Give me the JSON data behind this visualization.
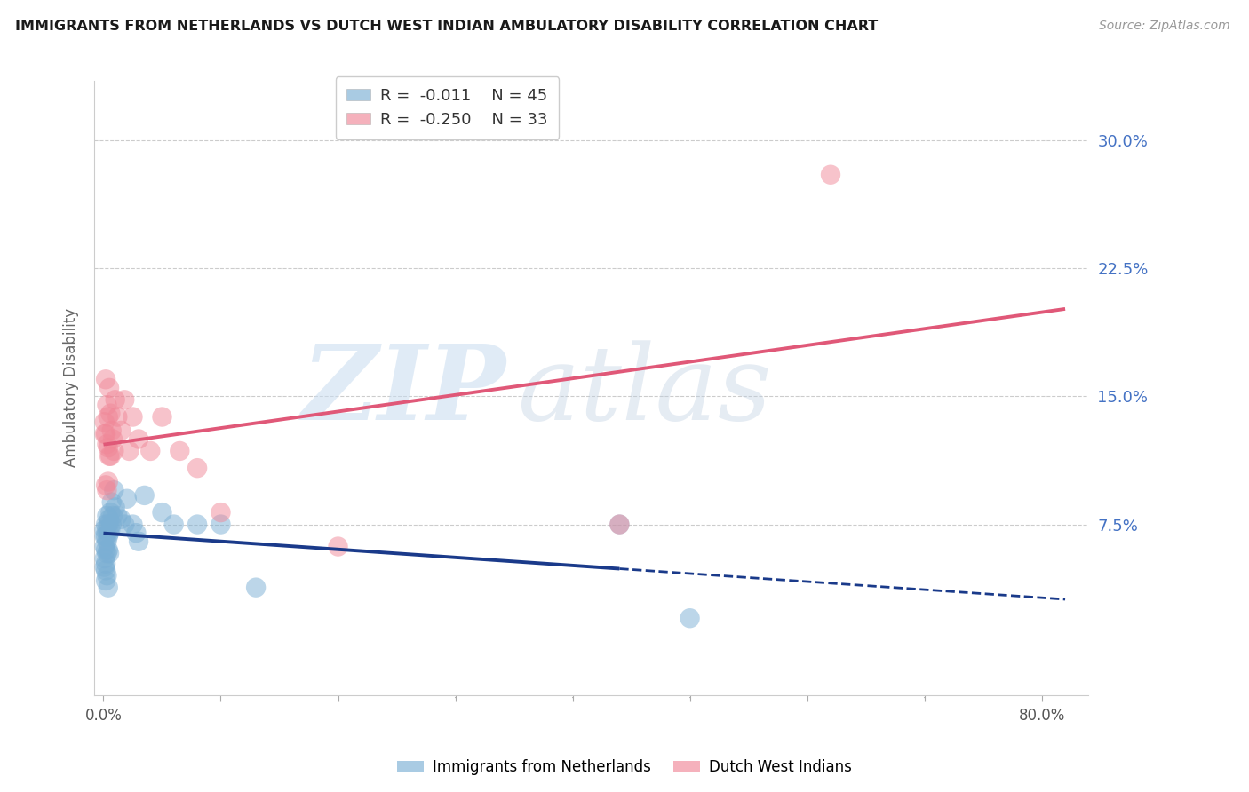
{
  "title": "IMMIGRANTS FROM NETHERLANDS VS DUTCH WEST INDIAN AMBULATORY DISABILITY CORRELATION CHART",
  "source": "Source: ZipAtlas.com",
  "ylabel": "Ambulatory Disability",
  "blue_color": "#7bafd4",
  "pink_color": "#f08898",
  "trend_blue": "#1a3a8a",
  "trend_pink": "#e05878",
  "ytick_vals": [
    0.075,
    0.15,
    0.225,
    0.3
  ],
  "ytick_labels": [
    "7.5%",
    "15.0%",
    "22.5%",
    "30.0%"
  ],
  "xlim": [
    -0.008,
    0.84
  ],
  "ylim": [
    -0.025,
    0.335
  ],
  "R_blue": -0.011,
  "N_blue": 45,
  "R_pink": -0.25,
  "N_pink": 33,
  "blue_x": [
    0.001,
    0.001,
    0.001,
    0.001,
    0.001,
    0.002,
    0.002,
    0.002,
    0.002,
    0.002,
    0.002,
    0.003,
    0.003,
    0.003,
    0.003,
    0.003,
    0.004,
    0.004,
    0.004,
    0.004,
    0.005,
    0.005,
    0.005,
    0.006,
    0.006,
    0.007,
    0.007,
    0.008,
    0.009,
    0.01,
    0.012,
    0.015,
    0.018,
    0.02,
    0.025,
    0.028,
    0.03,
    0.035,
    0.05,
    0.06,
    0.08,
    0.1,
    0.13,
    0.44,
    0.5
  ],
  "blue_y": [
    0.072,
    0.068,
    0.062,
    0.055,
    0.05,
    0.075,
    0.068,
    0.06,
    0.052,
    0.048,
    0.042,
    0.08,
    0.072,
    0.065,
    0.058,
    0.045,
    0.075,
    0.068,
    0.06,
    0.038,
    0.078,
    0.07,
    0.058,
    0.082,
    0.072,
    0.088,
    0.075,
    0.08,
    0.095,
    0.085,
    0.08,
    0.078,
    0.075,
    0.09,
    0.075,
    0.07,
    0.065,
    0.092,
    0.082,
    0.075,
    0.075,
    0.075,
    0.038,
    0.075,
    0.02
  ],
  "pink_x": [
    0.001,
    0.001,
    0.002,
    0.002,
    0.002,
    0.003,
    0.003,
    0.003,
    0.004,
    0.004,
    0.004,
    0.005,
    0.005,
    0.006,
    0.006,
    0.007,
    0.008,
    0.009,
    0.01,
    0.012,
    0.015,
    0.018,
    0.022,
    0.025,
    0.03,
    0.04,
    0.05,
    0.065,
    0.08,
    0.1,
    0.2,
    0.44,
    0.62
  ],
  "pink_y": [
    0.135,
    0.128,
    0.16,
    0.128,
    0.098,
    0.145,
    0.122,
    0.095,
    0.138,
    0.12,
    0.1,
    0.155,
    0.115,
    0.14,
    0.115,
    0.13,
    0.125,
    0.118,
    0.148,
    0.138,
    0.13,
    0.148,
    0.118,
    0.138,
    0.125,
    0.118,
    0.138,
    0.118,
    0.108,
    0.082,
    0.062,
    0.075,
    0.28
  ]
}
